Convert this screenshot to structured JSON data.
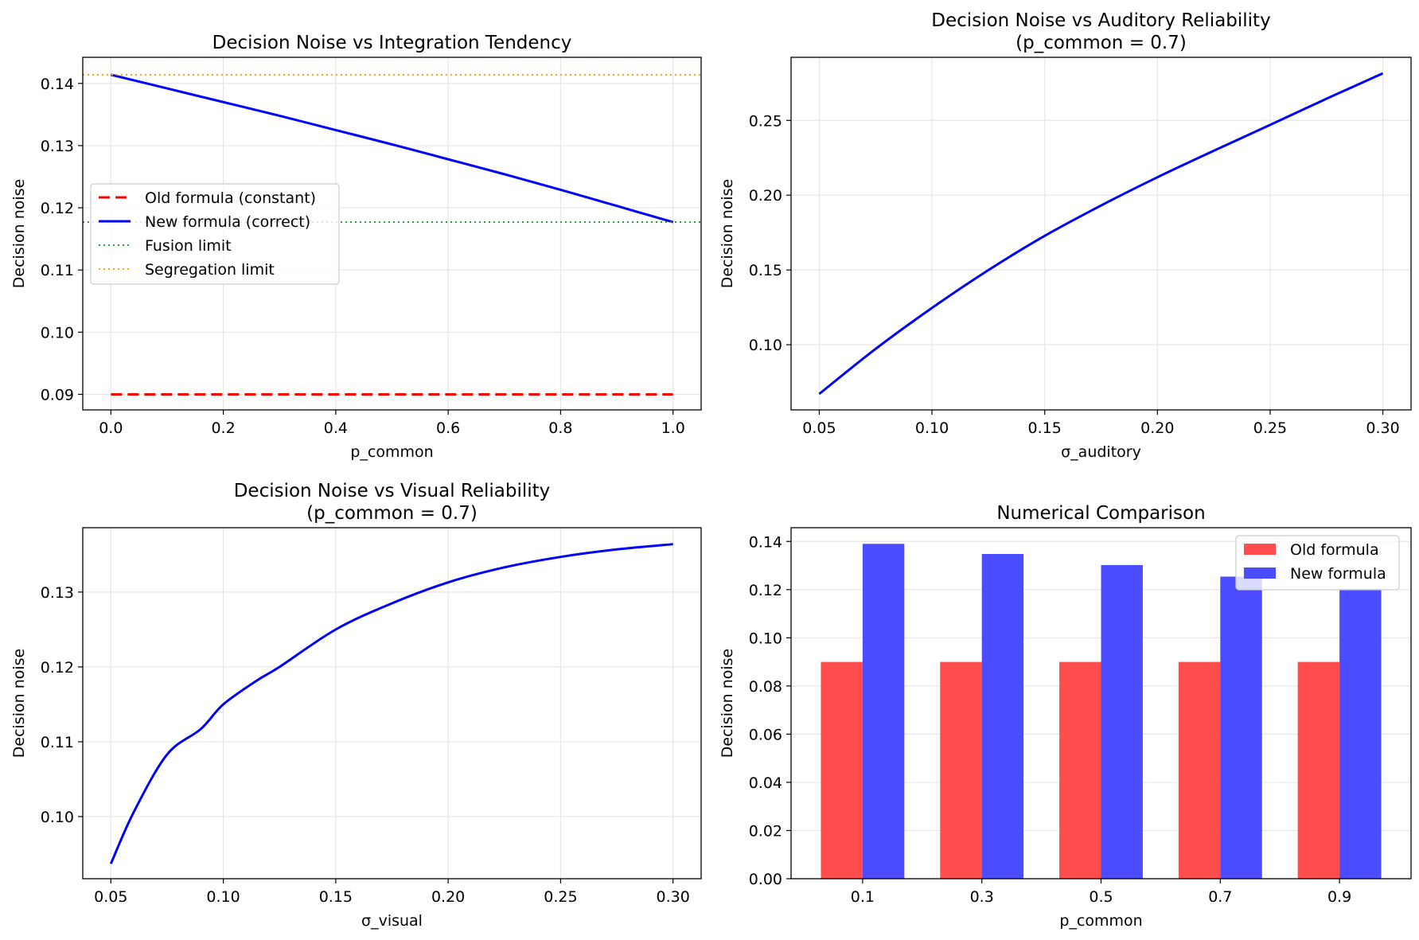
{
  "chart_data": [
    {
      "type": "line",
      "title": "Decision Noise vs Integration Tendency",
      "xlabel": "p_common",
      "ylabel": "Decision noise",
      "xlim": [
        -0.05,
        1.05
      ],
      "ylim": [
        0.0875,
        0.1442
      ],
      "xticks": [
        0.0,
        0.2,
        0.4,
        0.6,
        0.8,
        1.0
      ],
      "xtick_labels": [
        "0.0",
        "0.2",
        "0.4",
        "0.6",
        "0.8",
        "1.0"
      ],
      "yticks": [
        0.09,
        0.1,
        0.11,
        0.12,
        0.13,
        0.14
      ],
      "ytick_labels": [
        "0.09",
        "0.10",
        "0.11",
        "0.12",
        "0.13",
        "0.14"
      ],
      "grid": true,
      "legend": "center-left",
      "series": [
        {
          "name": "Old formula (constant)",
          "style": "dashed",
          "color": "#ff0000",
          "x": [
            0.0,
            1.0
          ],
          "y": [
            0.09,
            0.09
          ]
        },
        {
          "name": "New formula (correct)",
          "style": "solid",
          "color": "#0000ff",
          "x": [
            0.0,
            0.1,
            0.2,
            0.3,
            0.4,
            0.5,
            0.6,
            0.7,
            0.8,
            0.9,
            1.0
          ],
          "y": [
            0.1414,
            0.1392,
            0.137,
            0.1348,
            0.1325,
            0.1302,
            0.1278,
            0.1254,
            0.1229,
            0.1203,
            0.1177
          ]
        },
        {
          "name": "Fusion limit",
          "style": "dotted",
          "color": "#2ca02c",
          "hline": 0.1177
        },
        {
          "name": "Segregation limit",
          "style": "dotted",
          "color": "#ffa500",
          "hline": 0.1414
        }
      ]
    },
    {
      "type": "line",
      "title": "Decision Noise vs Auditory Reliability",
      "subtitle": "(p_common = 0.7)",
      "xlabel": "σ_auditory",
      "ylabel": "Decision noise",
      "xlim": [
        0.0375,
        0.3125
      ],
      "ylim": [
        0.0564,
        0.2922
      ],
      "xticks": [
        0.05,
        0.1,
        0.15,
        0.2,
        0.25,
        0.3
      ],
      "xtick_labels": [
        "0.05",
        "0.10",
        "0.15",
        "0.20",
        "0.25",
        "0.30"
      ],
      "yticks": [
        0.1,
        0.15,
        0.2,
        0.25
      ],
      "ytick_labels": [
        "0.10",
        "0.15",
        "0.20",
        "0.25"
      ],
      "grid": true,
      "series": [
        {
          "style": "solid",
          "color": "#0000ff",
          "x": [
            0.05,
            0.075,
            0.1,
            0.125,
            0.15,
            0.175,
            0.2,
            0.225,
            0.25,
            0.275,
            0.3
          ],
          "y": [
            0.0671,
            0.0972,
            0.1246,
            0.1499,
            0.1728,
            0.1931,
            0.212,
            0.2297,
            0.247,
            0.2645,
            0.2815
          ]
        }
      ]
    },
    {
      "type": "line",
      "title": "Decision Noise vs Visual Reliability",
      "subtitle": "(p_common = 0.7)",
      "xlabel": "σ_visual",
      "ylabel": "Decision noise",
      "xlim": [
        0.0375,
        0.3125
      ],
      "ylim": [
        0.0917,
        0.1386
      ],
      "xticks": [
        0.05,
        0.1,
        0.15,
        0.2,
        0.25,
        0.3
      ],
      "xtick_labels": [
        "0.05",
        "0.10",
        "0.15",
        "0.20",
        "0.25",
        "0.30"
      ],
      "yticks": [
        0.1,
        0.11,
        0.12,
        0.13
      ],
      "ytick_labels": [
        "0.10",
        "0.11",
        "0.12",
        "0.13"
      ],
      "grid": true,
      "series": [
        {
          "style": "solid",
          "color": "#0000ff",
          "x": [
            0.05,
            0.06,
            0.075,
            0.09,
            0.1,
            0.115,
            0.125,
            0.15,
            0.175,
            0.2,
            0.225,
            0.25,
            0.275,
            0.3
          ],
          "y": [
            0.0937,
            0.1005,
            0.1083,
            0.1117,
            0.115,
            0.1182,
            0.12,
            0.125,
            0.1285,
            0.1313,
            0.1333,
            0.1347,
            0.1357,
            0.1364
          ]
        }
      ]
    },
    {
      "type": "bar",
      "title": "Numerical Comparison",
      "xlabel": "p_common",
      "ylabel": "Decision noise",
      "categories": [
        "0.1",
        "0.3",
        "0.5",
        "0.7",
        "0.9"
      ],
      "ylim": [
        0,
        0.1457
      ],
      "yticks": [
        0.0,
        0.02,
        0.04,
        0.06,
        0.08,
        0.1,
        0.12,
        0.14
      ],
      "ytick_labels": [
        "0.00",
        "0.02",
        "0.04",
        "0.06",
        "0.08",
        "0.10",
        "0.12",
        "0.14"
      ],
      "grid": true,
      "legend": "top-right",
      "series": [
        {
          "name": "Old formula",
          "color": "#ff4c4c",
          "values": [
            0.09,
            0.09,
            0.09,
            0.09,
            0.09
          ]
        },
        {
          "name": "New formula",
          "color": "#4c4cff",
          "values": [
            0.139,
            0.1348,
            0.1302,
            0.1254,
            0.1203
          ]
        }
      ]
    }
  ]
}
